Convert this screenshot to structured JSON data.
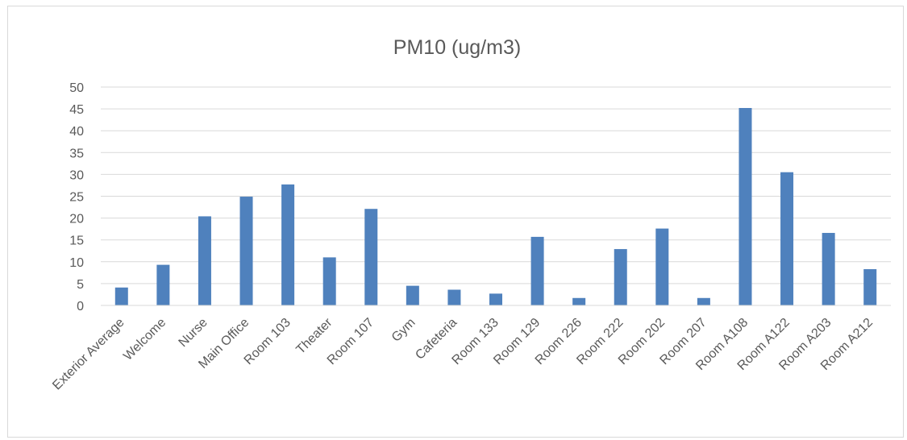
{
  "chart_data": {
    "type": "bar",
    "title": "PM10 (ug/m3)",
    "xlabel": "",
    "ylabel": "",
    "ylim": [
      0,
      50
    ],
    "yticks": [
      0,
      5,
      10,
      15,
      20,
      25,
      30,
      35,
      40,
      45,
      50
    ],
    "grid": true,
    "legend": "none",
    "bar_color": "#4f81bd",
    "categories": [
      "Exterior Average",
      "Welcome",
      "Nurse",
      "Main Office",
      "Room 103",
      "Theater",
      "Room 107",
      "Gym",
      "Cafeteria",
      "Room 133",
      "Room 129",
      "Room 226",
      "Room 222",
      "Room 202",
      "Room 207",
      "Room A108",
      "Room A122",
      "Room A203",
      "Room A212"
    ],
    "values": [
      4.1,
      9.3,
      20.4,
      24.9,
      27.7,
      11.0,
      22.1,
      4.5,
      3.6,
      2.7,
      15.7,
      1.7,
      12.9,
      17.6,
      1.7,
      45.2,
      30.5,
      16.6,
      8.3
    ]
  }
}
